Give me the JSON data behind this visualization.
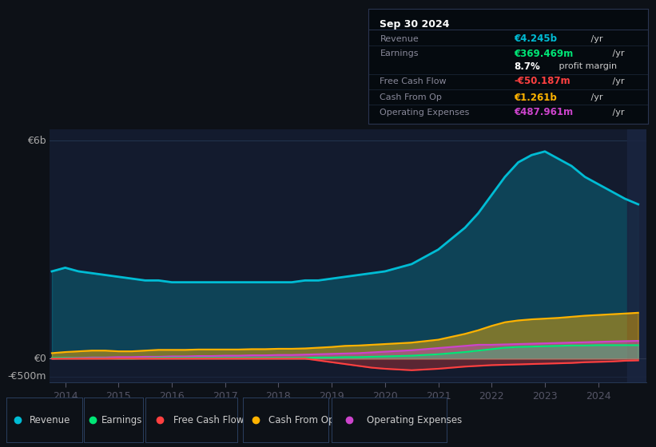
{
  "bg_color": "#0d1117",
  "plot_bg_color": "#131b2e",
  "grid_color": "#1e2d47",
  "title_box": {
    "date": "Sep 30 2024",
    "rows": [
      {
        "label": "Revenue",
        "value": "€4.245b",
        "unit": " /yr",
        "value_color": "#00bcd4"
      },
      {
        "label": "Earnings",
        "value": "€369.469m",
        "unit": " /yr",
        "value_color": "#00e676"
      },
      {
        "label": "",
        "value": "8.7%",
        "unit": " profit margin",
        "value_color": "#ffffff"
      },
      {
        "label": "Free Cash Flow",
        "value": "-€50.187m",
        "unit": " /yr",
        "value_color": "#ff4040"
      },
      {
        "label": "Cash From Op",
        "value": "€1.261b",
        "unit": " /yr",
        "value_color": "#ffb300"
      },
      {
        "label": "Operating Expenses",
        "value": "€487.961m",
        "unit": " /yr",
        "value_color": "#cc44cc"
      }
    ]
  },
  "x_years": [
    2013.75,
    2014.0,
    2014.25,
    2014.5,
    2014.75,
    2015.0,
    2015.25,
    2015.5,
    2015.75,
    2016.0,
    2016.25,
    2016.5,
    2016.75,
    2017.0,
    2017.25,
    2017.5,
    2017.75,
    2018.0,
    2018.25,
    2018.5,
    2018.75,
    2019.0,
    2019.25,
    2019.5,
    2019.75,
    2020.0,
    2020.25,
    2020.5,
    2020.75,
    2021.0,
    2021.25,
    2021.5,
    2021.75,
    2022.0,
    2022.25,
    2022.5,
    2022.75,
    2023.0,
    2023.25,
    2023.5,
    2023.75,
    2024.0,
    2024.25,
    2024.5,
    2024.75
  ],
  "revenue": [
    2.4,
    2.5,
    2.4,
    2.35,
    2.3,
    2.25,
    2.2,
    2.15,
    2.15,
    2.1,
    2.1,
    2.1,
    2.1,
    2.1,
    2.1,
    2.1,
    2.1,
    2.1,
    2.1,
    2.15,
    2.15,
    2.2,
    2.25,
    2.3,
    2.35,
    2.4,
    2.5,
    2.6,
    2.8,
    3.0,
    3.3,
    3.6,
    4.0,
    4.5,
    5.0,
    5.4,
    5.6,
    5.7,
    5.5,
    5.3,
    5.0,
    4.8,
    4.6,
    4.4,
    4.245
  ],
  "earnings": [
    0.02,
    0.02,
    0.01,
    0.01,
    0.01,
    0.0,
    0.0,
    0.01,
    0.02,
    0.02,
    0.02,
    0.02,
    0.02,
    0.02,
    0.02,
    0.02,
    0.02,
    0.02,
    0.02,
    0.02,
    0.03,
    0.03,
    0.04,
    0.04,
    0.05,
    0.06,
    0.07,
    0.08,
    0.1,
    0.12,
    0.15,
    0.18,
    0.22,
    0.26,
    0.3,
    0.32,
    0.33,
    0.34,
    0.35,
    0.36,
    0.36,
    0.37,
    0.37,
    0.37,
    0.369
  ],
  "free_cash_flow": [
    0.0,
    0.0,
    0.0,
    0.0,
    0.0,
    0.0,
    0.0,
    0.0,
    0.0,
    0.0,
    0.0,
    0.0,
    0.0,
    0.0,
    0.0,
    0.0,
    0.0,
    0.0,
    0.0,
    0.0,
    -0.05,
    -0.1,
    -0.15,
    -0.2,
    -0.25,
    -0.28,
    -0.3,
    -0.32,
    -0.3,
    -0.28,
    -0.25,
    -0.22,
    -0.2,
    -0.18,
    -0.17,
    -0.16,
    -0.15,
    -0.14,
    -0.13,
    -0.12,
    -0.1,
    -0.09,
    -0.08,
    -0.06,
    -0.05
  ],
  "cash_from_op": [
    0.15,
    0.18,
    0.2,
    0.22,
    0.22,
    0.2,
    0.2,
    0.22,
    0.24,
    0.24,
    0.24,
    0.25,
    0.25,
    0.25,
    0.25,
    0.26,
    0.26,
    0.27,
    0.27,
    0.28,
    0.3,
    0.32,
    0.35,
    0.36,
    0.38,
    0.4,
    0.42,
    0.44,
    0.48,
    0.52,
    0.6,
    0.68,
    0.78,
    0.9,
    1.0,
    1.05,
    1.08,
    1.1,
    1.12,
    1.15,
    1.18,
    1.2,
    1.22,
    1.24,
    1.261
  ],
  "operating_expenses": [
    0.0,
    0.02,
    0.02,
    0.03,
    0.03,
    0.04,
    0.04,
    0.05,
    0.05,
    0.06,
    0.06,
    0.07,
    0.07,
    0.08,
    0.08,
    0.09,
    0.09,
    0.1,
    0.1,
    0.11,
    0.12,
    0.13,
    0.14,
    0.15,
    0.17,
    0.19,
    0.21,
    0.23,
    0.26,
    0.29,
    0.32,
    0.35,
    0.38,
    0.38,
    0.39,
    0.4,
    0.41,
    0.42,
    0.43,
    0.44,
    0.45,
    0.46,
    0.47,
    0.48,
    0.488
  ],
  "colors": {
    "revenue": "#00bcd4",
    "earnings": "#00e676",
    "free_cash_flow": "#ff4040",
    "cash_from_op": "#ffb300",
    "operating_expenses": "#cc44cc"
  },
  "ylim_bottom": -0.65,
  "ylim_top": 6.3,
  "x_ticks": [
    2014,
    2015,
    2016,
    2017,
    2018,
    2019,
    2020,
    2021,
    2022,
    2023,
    2024
  ],
  "legend_items": [
    {
      "label": "Revenue",
      "color": "#00bcd4"
    },
    {
      "label": "Earnings",
      "color": "#00e676"
    },
    {
      "label": "Free Cash Flow",
      "color": "#ff4040"
    },
    {
      "label": "Cash From Op",
      "color": "#ffb300"
    },
    {
      "label": "Operating Expenses",
      "color": "#cc44cc"
    }
  ]
}
